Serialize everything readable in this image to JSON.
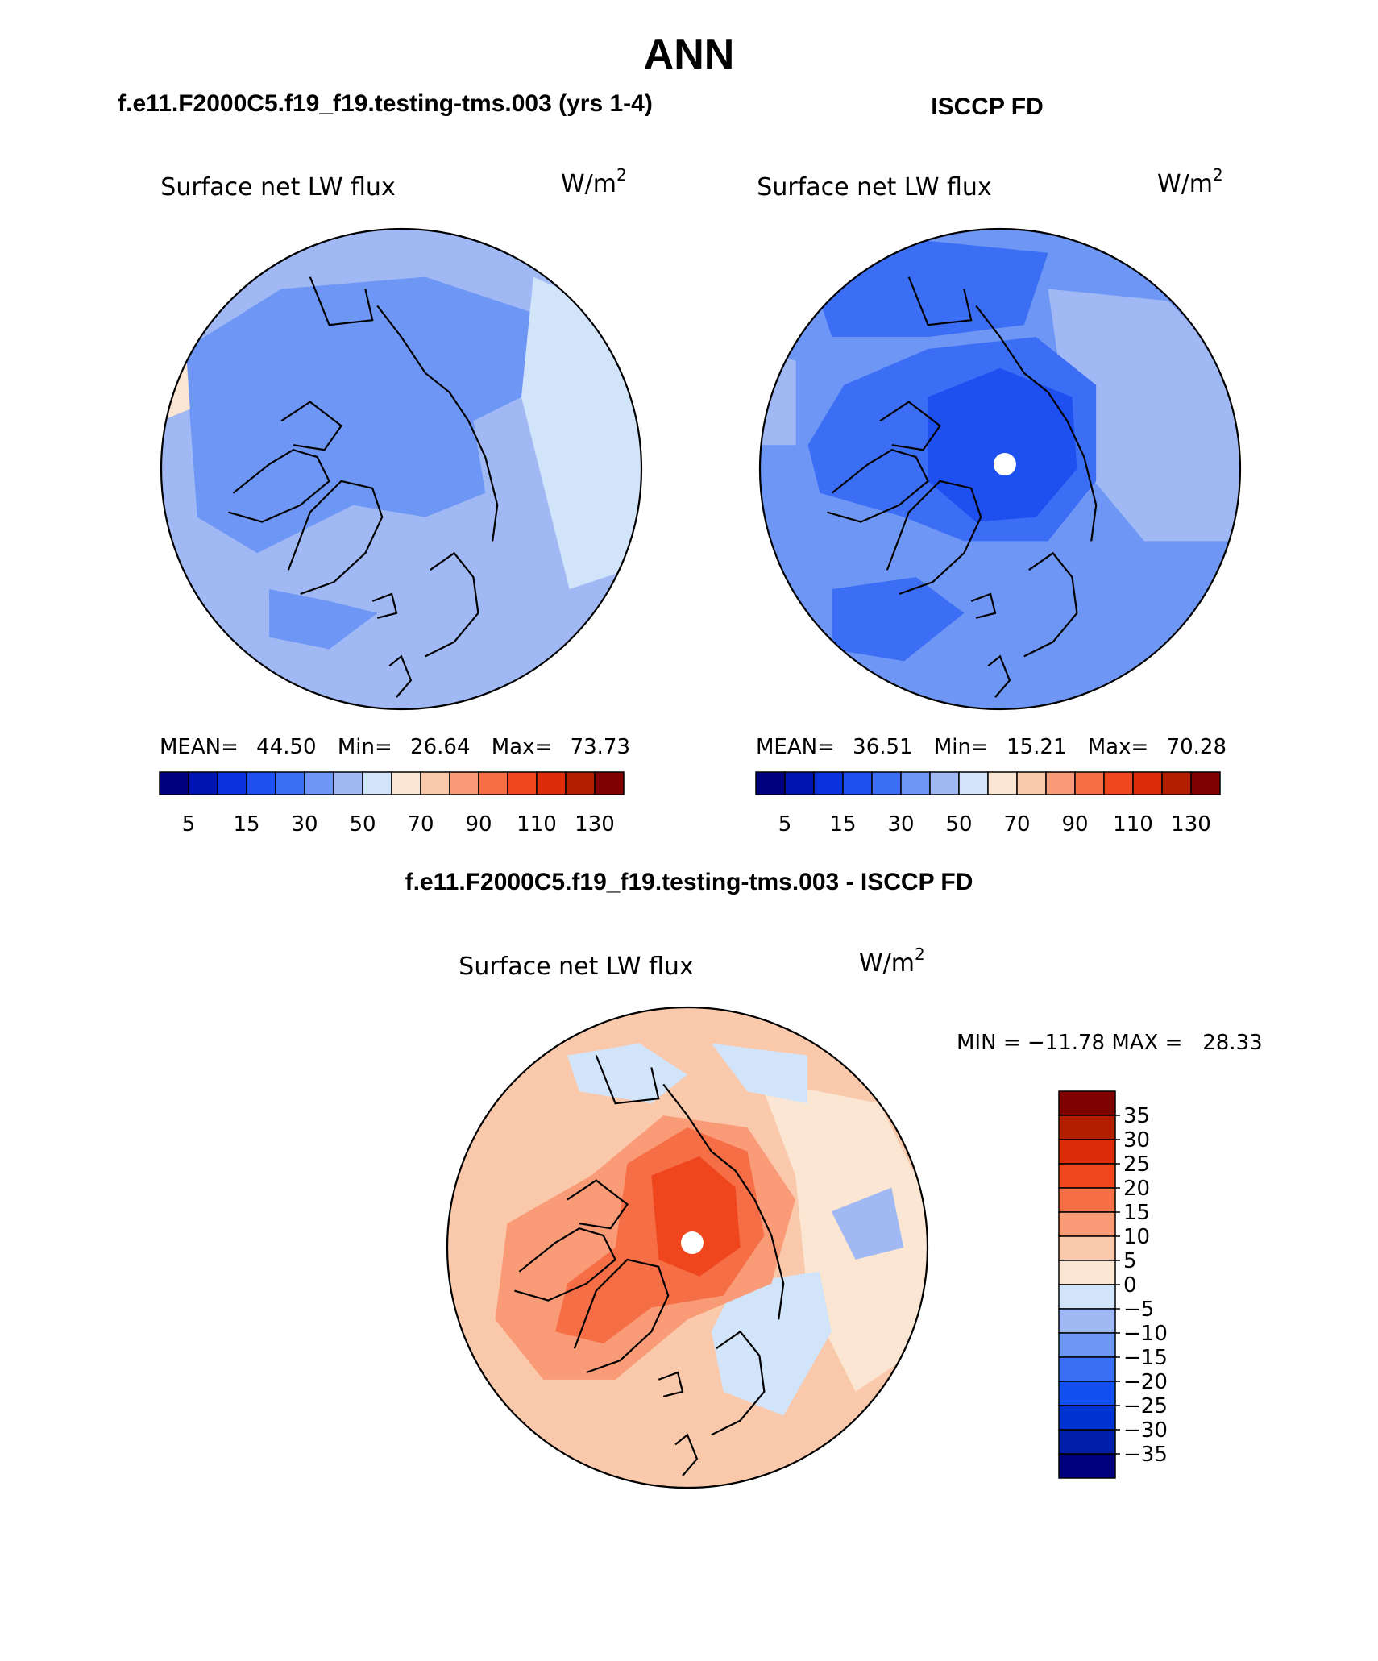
{
  "figure_title": "ANN",
  "panels": {
    "model": {
      "header": "f.e11.F2000C5.f19_f19.testing-tms.003 (yrs 1-4)",
      "variable": "Surface net LW flux",
      "units_base": "W/m",
      "units_exp": "2",
      "stats": {
        "mean_label": "MEAN=",
        "mean": "44.50",
        "min_label": "Min=",
        "min": "26.64",
        "max_label": "Max=",
        "max": "73.73"
      }
    },
    "obs": {
      "header": "ISCCP FD",
      "variable": "Surface net LW flux",
      "units_base": "W/m",
      "units_exp": "2",
      "stats": {
        "mean_label": "MEAN=",
        "mean": "36.51",
        "min_label": "Min=",
        "min": "15.21",
        "max_label": "Max=",
        "max": "70.28"
      }
    },
    "diff": {
      "header": "f.e11.F2000C5.f19_f19.testing-tms.003 - ISCCP FD",
      "variable": "Surface net LW flux",
      "units_base": "W/m",
      "units_exp": "2",
      "stats": {
        "text": "MIN = −11.78 MAX =   28.33"
      }
    }
  },
  "colorbars": {
    "field_colors": [
      "#00007f",
      "#0014b4",
      "#0a32dc",
      "#1e50f0",
      "#3c6ef5",
      "#6e96f5",
      "#a0b9f5",
      "#d2e4fa",
      "#fae6d2",
      "#fac8aa",
      "#fa9b78",
      "#f56e46",
      "#f0461e",
      "#dc2d0a",
      "#b41e00",
      "#7f0000"
    ],
    "field_labels": [
      "5",
      "15",
      "30",
      "50",
      "70",
      "90",
      "110",
      "130"
    ],
    "diff_colors": [
      "#00007f",
      "#001eaa",
      "#0032d2",
      "#1450f0",
      "#3c6ef5",
      "#6e96f5",
      "#a0b9f5",
      "#d2e4fa",
      "#fae6d2",
      "#fac8aa",
      "#fa9b78",
      "#f56e46",
      "#f0461e",
      "#dc2d0a",
      "#b41e00",
      "#7f0000"
    ],
    "diff_labels": [
      "35",
      "30",
      "25",
      "20",
      "15",
      "10",
      "5",
      "0",
      "−5",
      "−10",
      "−15",
      "−20",
      "−25",
      "−30",
      "−35"
    ]
  },
  "map_colors": {
    "model_base": "#a0b9f5",
    "model_mid": "#6e96f5",
    "model_light": "#d2e4fa",
    "model_warm": "#fae6d2",
    "obs_base": "#6e96f5",
    "obs_dark": "#3c6ef5",
    "obs_core": "#1e50f0",
    "obs_light": "#a0b9f5",
    "diff_base": "#fac8aa",
    "diff_light": "#fae6d2",
    "diff_mid": "#fa9b78",
    "diff_strong": "#f56e46",
    "diff_core": "#f0461e",
    "diff_cool": "#d2e4fa",
    "diff_cool2": "#a0b9f5"
  }
}
